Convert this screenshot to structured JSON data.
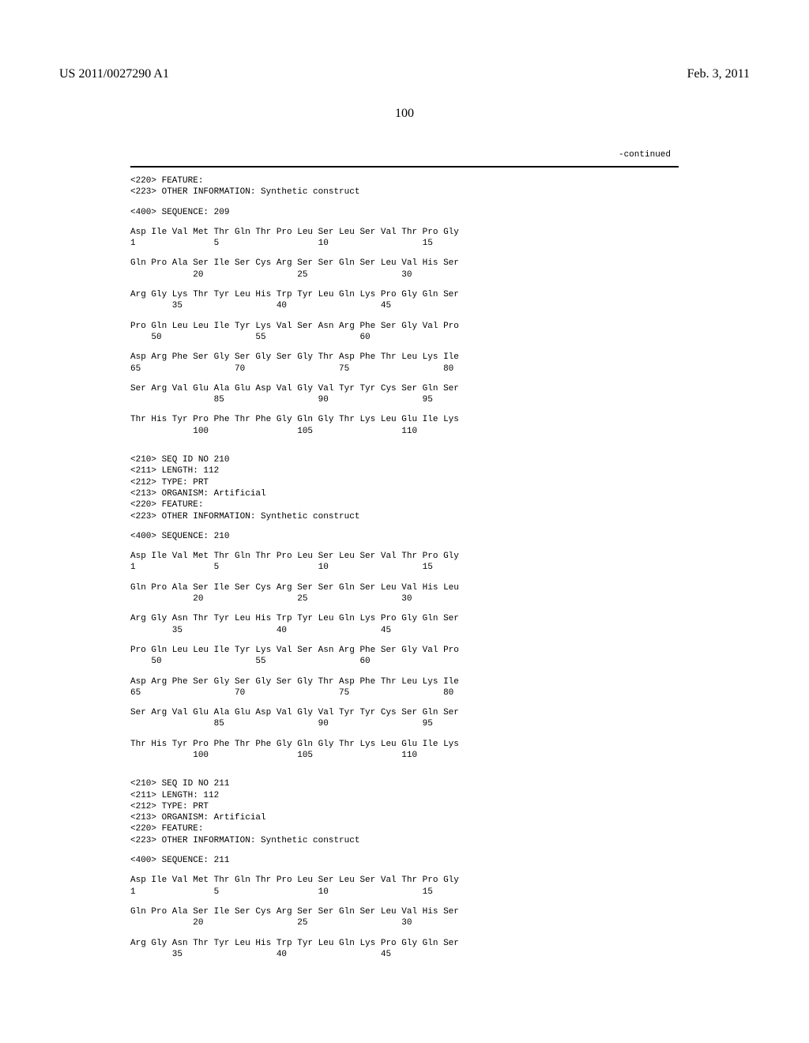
{
  "header": {
    "left": "US 2011/0027290 A1",
    "right": "Feb. 3, 2011"
  },
  "page_number": "100",
  "continued": "-continued",
  "blocks": [
    {
      "type": "tag",
      "text": "<220> FEATURE:"
    },
    {
      "type": "tag",
      "text": "<223> OTHER INFORMATION: Synthetic construct"
    },
    {
      "type": "blank"
    },
    {
      "type": "tag",
      "text": "<400> SEQUENCE: 209"
    },
    {
      "type": "blank"
    },
    {
      "type": "seq",
      "aa": "Asp Ile Val Met Thr Gln Thr Pro Leu Ser Leu Ser Val Thr Pro Gly",
      "num": "1               5                   10                  15"
    },
    {
      "type": "blank"
    },
    {
      "type": "seq",
      "aa": "Gln Pro Ala Ser Ile Ser Cys Arg Ser Ser Gln Ser Leu Val His Ser",
      "num": "            20                  25                  30"
    },
    {
      "type": "blank"
    },
    {
      "type": "seq",
      "aa": "Arg Gly Lys Thr Tyr Leu His Trp Tyr Leu Gln Lys Pro Gly Gln Ser",
      "num": "        35                  40                  45"
    },
    {
      "type": "blank"
    },
    {
      "type": "seq",
      "aa": "Pro Gln Leu Leu Ile Tyr Lys Val Ser Asn Arg Phe Ser Gly Val Pro",
      "num": "    50                  55                  60"
    },
    {
      "type": "blank"
    },
    {
      "type": "seq",
      "aa": "Asp Arg Phe Ser Gly Ser Gly Ser Gly Thr Asp Phe Thr Leu Lys Ile",
      "num": "65                  70                  75                  80"
    },
    {
      "type": "blank"
    },
    {
      "type": "seq",
      "aa": "Ser Arg Val Glu Ala Glu Asp Val Gly Val Tyr Tyr Cys Ser Gln Ser",
      "num": "                85                  90                  95"
    },
    {
      "type": "blank"
    },
    {
      "type": "seq",
      "aa": "Thr His Tyr Pro Phe Thr Phe Gly Gln Gly Thr Lys Leu Glu Ile Lys",
      "num": "            100                 105                 110"
    },
    {
      "type": "blank"
    },
    {
      "type": "blank"
    },
    {
      "type": "tag",
      "text": "<210> SEQ ID NO 210"
    },
    {
      "type": "tag",
      "text": "<211> LENGTH: 112"
    },
    {
      "type": "tag",
      "text": "<212> TYPE: PRT"
    },
    {
      "type": "tag",
      "text": "<213> ORGANISM: Artificial"
    },
    {
      "type": "tag",
      "text": "<220> FEATURE:"
    },
    {
      "type": "tag",
      "text": "<223> OTHER INFORMATION: Synthetic construct"
    },
    {
      "type": "blank"
    },
    {
      "type": "tag",
      "text": "<400> SEQUENCE: 210"
    },
    {
      "type": "blank"
    },
    {
      "type": "seq",
      "aa": "Asp Ile Val Met Thr Gln Thr Pro Leu Ser Leu Ser Val Thr Pro Gly",
      "num": "1               5                   10                  15"
    },
    {
      "type": "blank"
    },
    {
      "type": "seq",
      "aa": "Gln Pro Ala Ser Ile Ser Cys Arg Ser Ser Gln Ser Leu Val His Leu",
      "num": "            20                  25                  30"
    },
    {
      "type": "blank"
    },
    {
      "type": "seq",
      "aa": "Arg Gly Asn Thr Tyr Leu His Trp Tyr Leu Gln Lys Pro Gly Gln Ser",
      "num": "        35                  40                  45"
    },
    {
      "type": "blank"
    },
    {
      "type": "seq",
      "aa": "Pro Gln Leu Leu Ile Tyr Lys Val Ser Asn Arg Phe Ser Gly Val Pro",
      "num": "    50                  55                  60"
    },
    {
      "type": "blank"
    },
    {
      "type": "seq",
      "aa": "Asp Arg Phe Ser Gly Ser Gly Ser Gly Thr Asp Phe Thr Leu Lys Ile",
      "num": "65                  70                  75                  80"
    },
    {
      "type": "blank"
    },
    {
      "type": "seq",
      "aa": "Ser Arg Val Glu Ala Glu Asp Val Gly Val Tyr Tyr Cys Ser Gln Ser",
      "num": "                85                  90                  95"
    },
    {
      "type": "blank"
    },
    {
      "type": "seq",
      "aa": "Thr His Tyr Pro Phe Thr Phe Gly Gln Gly Thr Lys Leu Glu Ile Lys",
      "num": "            100                 105                 110"
    },
    {
      "type": "blank"
    },
    {
      "type": "blank"
    },
    {
      "type": "tag",
      "text": "<210> SEQ ID NO 211"
    },
    {
      "type": "tag",
      "text": "<211> LENGTH: 112"
    },
    {
      "type": "tag",
      "text": "<212> TYPE: PRT"
    },
    {
      "type": "tag",
      "text": "<213> ORGANISM: Artificial"
    },
    {
      "type": "tag",
      "text": "<220> FEATURE:"
    },
    {
      "type": "tag",
      "text": "<223> OTHER INFORMATION: Synthetic construct"
    },
    {
      "type": "blank"
    },
    {
      "type": "tag",
      "text": "<400> SEQUENCE: 211"
    },
    {
      "type": "blank"
    },
    {
      "type": "seq",
      "aa": "Asp Ile Val Met Thr Gln Thr Pro Leu Ser Leu Ser Val Thr Pro Gly",
      "num": "1               5                   10                  15"
    },
    {
      "type": "blank"
    },
    {
      "type": "seq",
      "aa": "Gln Pro Ala Ser Ile Ser Cys Arg Ser Ser Gln Ser Leu Val His Ser",
      "num": "            20                  25                  30"
    },
    {
      "type": "blank"
    },
    {
      "type": "seq",
      "aa": "Arg Gly Asn Thr Tyr Leu His Trp Tyr Leu Gln Lys Pro Gly Gln Ser",
      "num": "        35                  40                  45"
    }
  ]
}
